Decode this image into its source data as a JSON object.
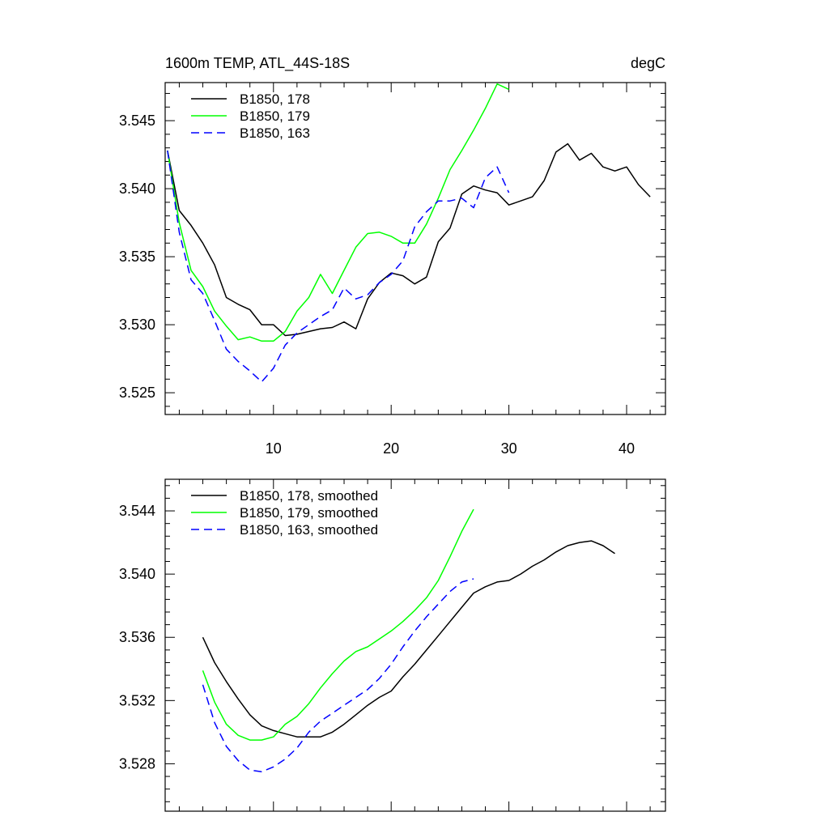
{
  "chart_data": [
    {
      "type": "line",
      "title": "1600m TEMP, ATL_44S-18S",
      "units": "degC",
      "xlim": [
        0.8,
        43.3
      ],
      "ylim": [
        3.5234,
        3.5478
      ],
      "x_ticks": [
        10,
        20,
        30,
        40
      ],
      "y_ticks": [
        3.525,
        3.53,
        3.535,
        3.54,
        3.545
      ],
      "y_tick_labels": [
        "3.525",
        "3.530",
        "3.535",
        "3.540",
        "3.545"
      ],
      "legend_position": "top-left",
      "series": [
        {
          "name": "B1850, 178",
          "color": "#000000",
          "dash": "solid",
          "x": [
            1,
            2,
            3,
            4,
            5,
            6,
            7,
            8,
            9,
            10,
            11,
            12,
            13,
            14,
            15,
            16,
            17,
            18,
            19,
            20,
            21,
            22,
            23,
            24,
            25,
            26,
            27,
            28,
            29,
            30,
            31,
            32,
            33,
            34,
            35,
            36,
            37,
            38,
            39,
            40,
            41,
            42
          ],
          "y": [
            3.5428,
            3.5384,
            3.5373,
            3.536,
            3.5344,
            3.532,
            3.5315,
            3.5311,
            3.53,
            3.53,
            3.5292,
            3.5293,
            3.5295,
            3.5297,
            3.5298,
            3.5302,
            3.5297,
            3.5319,
            3.5331,
            3.5338,
            3.5336,
            3.533,
            3.5335,
            3.5361,
            3.5371,
            3.5396,
            3.5402,
            3.5399,
            3.5397,
            3.5388,
            3.5391,
            3.5394,
            3.5406,
            3.5427,
            3.5433,
            3.5421,
            3.5426,
            3.5416,
            3.5413,
            3.5416,
            3.5403,
            3.5394
          ]
        },
        {
          "name": "B1850, 179",
          "color": "#00ff00",
          "dash": "solid",
          "x": [
            1,
            2,
            3,
            4,
            5,
            6,
            7,
            8,
            9,
            10,
            11,
            12,
            13,
            14,
            15,
            16,
            17,
            18,
            19,
            20,
            21,
            22,
            23,
            24,
            25,
            26,
            27,
            28,
            29,
            30
          ],
          "y": [
            3.5428,
            3.5375,
            3.534,
            3.5328,
            3.531,
            3.5299,
            3.5289,
            3.5291,
            3.5288,
            3.5288,
            3.5295,
            3.531,
            3.532,
            3.5337,
            3.5323,
            3.534,
            3.5357,
            3.5367,
            3.5368,
            3.5365,
            3.536,
            3.536,
            3.5374,
            3.5393,
            3.5414,
            3.5428,
            3.5443,
            3.5459,
            3.5477,
            3.5473
          ]
        },
        {
          "name": "B1850, 163",
          "color": "#0000ff",
          "dash": "dashed",
          "x": [
            1,
            2,
            3,
            4,
            5,
            6,
            7,
            8,
            9,
            10,
            11,
            12,
            13,
            14,
            15,
            16,
            17,
            18,
            19,
            20,
            21,
            22,
            23,
            24,
            25,
            26,
            27,
            28,
            29,
            30
          ],
          "y": [
            3.5428,
            3.5368,
            3.5333,
            3.5323,
            3.5303,
            3.5282,
            3.5273,
            3.5266,
            3.5258,
            3.5268,
            3.5285,
            3.5294,
            3.53,
            3.5306,
            3.5311,
            3.5327,
            3.5319,
            3.5322,
            3.5331,
            3.5337,
            3.5347,
            3.5372,
            3.5383,
            3.5391,
            3.5391,
            3.5393,
            3.5386,
            3.5408,
            3.5416,
            3.5397
          ]
        }
      ]
    },
    {
      "type": "line",
      "xlim": [
        0.8,
        43.3
      ],
      "ylim": [
        3.525,
        3.546
      ],
      "x_ticks": [
        10,
        20,
        30,
        40
      ],
      "y_ticks": [
        3.528,
        3.532,
        3.536,
        3.54,
        3.544
      ],
      "y_tick_labels": [
        "3.528",
        "3.532",
        "3.536",
        "3.540",
        "3.544"
      ],
      "legend_position": "top-left",
      "series": [
        {
          "name": "B1850, 178, smoothed",
          "color": "#000000",
          "dash": "solid",
          "x": [
            4,
            5,
            6,
            7,
            8,
            9,
            10,
            11,
            12,
            13,
            14,
            15,
            16,
            17,
            18,
            19,
            20,
            21,
            22,
            23,
            24,
            25,
            26,
            27,
            28,
            29,
            30,
            31,
            32,
            33,
            34,
            35,
            36,
            37,
            38,
            39
          ],
          "y": [
            3.536,
            3.5344,
            3.5332,
            3.5321,
            3.5311,
            3.5304,
            3.5301,
            3.5299,
            3.5297,
            3.5297,
            3.5297,
            3.53,
            3.5305,
            3.5311,
            3.5317,
            3.5322,
            3.5326,
            3.5335,
            3.5343,
            3.5352,
            3.5361,
            3.537,
            3.5379,
            3.5388,
            3.5392,
            3.5395,
            3.5396,
            3.54,
            3.5405,
            3.5409,
            3.5414,
            3.5418,
            3.542,
            3.5421,
            3.5418,
            3.5413
          ]
        },
        {
          "name": "B1850, 179, smoothed",
          "color": "#00ff00",
          "dash": "solid",
          "x": [
            4,
            5,
            6,
            7,
            8,
            9,
            10,
            11,
            12,
            13,
            14,
            15,
            16,
            17,
            18,
            19,
            20,
            21,
            22,
            23,
            24,
            25,
            26,
            27
          ],
          "y": [
            3.5339,
            3.5319,
            3.5305,
            3.5298,
            3.5295,
            3.5295,
            3.5297,
            3.5305,
            3.531,
            3.5318,
            3.5328,
            3.5337,
            3.5345,
            3.5351,
            3.5354,
            3.5359,
            3.5364,
            3.537,
            3.5377,
            3.5385,
            3.5396,
            3.5411,
            3.5427,
            3.5441
          ]
        },
        {
          "name": "B1850, 163, smoothed",
          "color": "#0000ff",
          "dash": "dashed",
          "x": [
            4,
            5,
            6,
            7,
            8,
            9,
            10,
            11,
            12,
            13,
            14,
            15,
            16,
            17,
            18,
            19,
            20,
            21,
            22,
            23,
            24,
            25,
            26,
            27
          ],
          "y": [
            3.533,
            3.5306,
            3.5291,
            3.5282,
            3.5276,
            3.5275,
            3.5278,
            3.5283,
            3.529,
            3.53,
            3.5307,
            3.5312,
            3.5317,
            3.5322,
            3.5327,
            3.5334,
            3.5343,
            3.5354,
            3.5364,
            3.5373,
            3.5381,
            3.5389,
            3.5395,
            3.5397
          ]
        }
      ]
    }
  ]
}
